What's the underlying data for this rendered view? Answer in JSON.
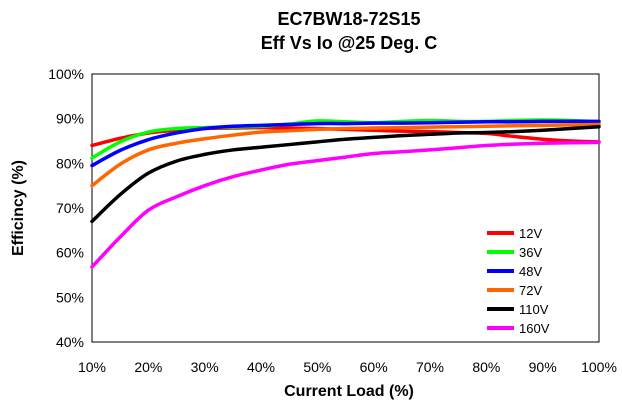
{
  "chart_data": {
    "type": "line",
    "title": "EC7BW18-72S15",
    "subtitle": "Eff Vs Io @25 Deg. C",
    "xlabel": "Current Load (%)",
    "ylabel": "Efficincy (%)",
    "xlim": [
      10,
      100
    ],
    "ylim": [
      40,
      100
    ],
    "x_ticks": [
      "10%",
      "20%",
      "30%",
      "40%",
      "50%",
      "60%",
      "70%",
      "80%",
      "90%",
      "100%"
    ],
    "y_ticks": [
      "40%",
      "50%",
      "60%",
      "70%",
      "80%",
      "90%",
      "100%"
    ],
    "grid": false,
    "legend_position": "bottom-right",
    "x": [
      10,
      15,
      20,
      25,
      30,
      35,
      40,
      45,
      50,
      55,
      60,
      65,
      70,
      75,
      80,
      85,
      90,
      95,
      100
    ],
    "series": [
      {
        "name": "12V",
        "color": "#ff0000",
        "values": [
          84.0,
          85.6,
          86.8,
          87.4,
          87.8,
          87.9,
          88.0,
          87.9,
          87.8,
          87.6,
          87.4,
          87.2,
          87.1,
          86.9,
          86.7,
          86.0,
          85.4,
          85.0,
          84.8
        ]
      },
      {
        "name": "36V",
        "color": "#00ff00",
        "values": [
          81.2,
          84.8,
          87.0,
          87.8,
          88.0,
          88.1,
          88.3,
          88.8,
          89.5,
          89.3,
          89.1,
          89.4,
          89.6,
          89.4,
          89.4,
          89.6,
          89.7,
          89.6,
          89.3
        ]
      },
      {
        "name": "48V",
        "color": "#0000ff",
        "values": [
          79.5,
          82.9,
          85.3,
          86.8,
          87.8,
          88.3,
          88.5,
          88.7,
          88.9,
          88.9,
          89.0,
          89.0,
          89.1,
          89.2,
          89.3,
          89.3,
          89.4,
          89.4,
          89.4
        ]
      },
      {
        "name": "72V",
        "color": "#ff6600",
        "values": [
          75.0,
          79.8,
          83.0,
          84.5,
          85.5,
          86.3,
          87.0,
          87.3,
          87.6,
          87.8,
          87.9,
          88.0,
          88.1,
          88.2,
          88.3,
          88.4,
          88.5,
          88.6,
          88.7
        ]
      },
      {
        "name": "110V",
        "color": "#000000",
        "values": [
          67.0,
          73.0,
          77.8,
          80.5,
          82.0,
          83.0,
          83.6,
          84.2,
          84.8,
          85.4,
          85.8,
          86.2,
          86.5,
          86.8,
          86.9,
          87.1,
          87.4,
          87.8,
          88.2
        ]
      },
      {
        "name": "160V",
        "color": "#ff00ff",
        "values": [
          56.8,
          63.5,
          69.5,
          72.5,
          75.0,
          77.0,
          78.5,
          79.8,
          80.6,
          81.4,
          82.2,
          82.6,
          83.0,
          83.5,
          84.0,
          84.3,
          84.5,
          84.6,
          84.7
        ]
      }
    ]
  }
}
